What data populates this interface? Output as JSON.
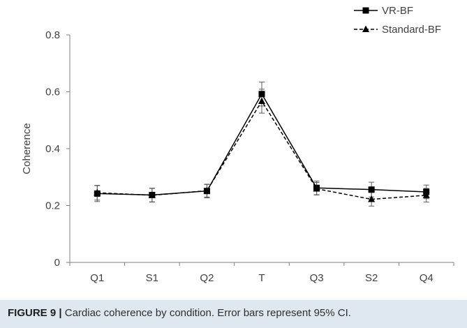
{
  "chart_data": {
    "type": "line",
    "title": "",
    "xlabel": "",
    "ylabel": "Coherence",
    "categories": [
      "Q1",
      "S1",
      "Q2",
      "T",
      "Q3",
      "S2",
      "Q4"
    ],
    "ylim": [
      0,
      0.8
    ],
    "yticks": [
      "0",
      "0.2",
      "0.4",
      "0.6",
      "0.8"
    ],
    "grid": false,
    "legend_position": "top-right",
    "error_bars": "95% CI",
    "series": [
      {
        "name": "VR-BF",
        "values": [
          0.242,
          0.237,
          0.251,
          0.592,
          0.262,
          0.256,
          0.248
        ],
        "err": [
          0.028,
          0.024,
          0.024,
          0.042,
          0.024,
          0.026,
          0.024
        ],
        "line_style": "solid",
        "marker": "square",
        "color": "#000000"
      },
      {
        "name": "Standard-BF",
        "values": [
          0.245,
          0.236,
          0.252,
          0.567,
          0.259,
          0.222,
          0.236
        ],
        "err": [
          0.026,
          0.024,
          0.022,
          0.042,
          0.022,
          0.024,
          0.024
        ],
        "line_style": "dashed",
        "marker": "triangle",
        "color": "#000000"
      }
    ]
  },
  "caption": {
    "label": "FIGURE 9",
    "separator": "|",
    "text": "Cardiac coherence by condition. Error bars represent 95% CI."
  },
  "colors": {
    "caption_background": "#dfe7f1",
    "axis": "#7f7f7f",
    "text": "#404040"
  }
}
